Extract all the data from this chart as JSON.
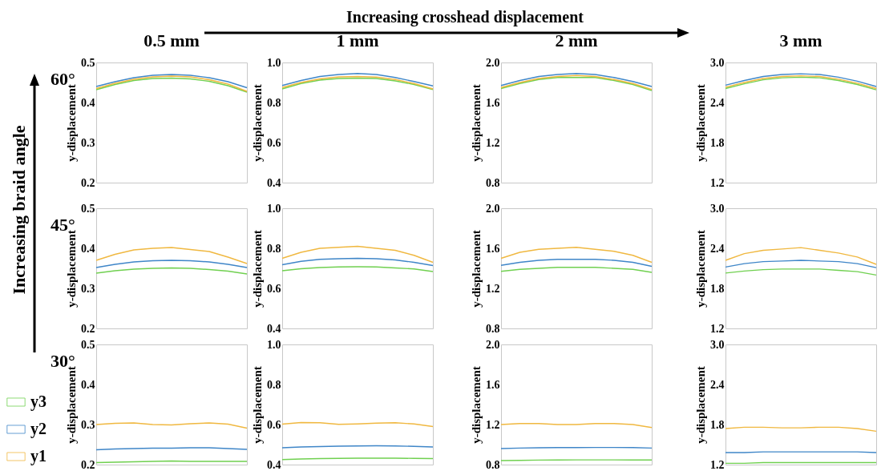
{
  "chart_data": [
    {
      "type": "line",
      "title": "0.5 mm",
      "ylabel": "y-displacement",
      "annotations": [
        "60°",
        "Increasing crosshead displacement",
        "Increasing braid angle"
      ],
      "categories": [
        null,
        null,
        null,
        null,
        null,
        null,
        null,
        null,
        null
      ],
      "ylim": [
        0.2,
        0.5
      ],
      "yticks": [
        0.2,
        0.3,
        0.4,
        0.5
      ],
      "series": [
        {
          "color": "#70d050",
          "values": [
            0.432,
            0.445,
            0.455,
            0.46,
            0.461,
            0.459,
            0.453,
            0.442,
            0.426
          ]
        },
        {
          "color": "#3f86c8",
          "values": [
            0.44,
            0.452,
            0.462,
            0.468,
            0.47,
            0.468,
            0.462,
            0.452,
            0.437
          ]
        },
        {
          "color": "#f0b840",
          "values": [
            0.435,
            0.448,
            0.458,
            0.464,
            0.466,
            0.464,
            0.457,
            0.446,
            0.428
          ]
        }
      ]
    },
    {
      "type": "line",
      "title": "1 mm",
      "ylabel": "y-displacement",
      "categories": [
        null,
        null,
        null,
        null,
        null,
        null,
        null,
        null,
        null
      ],
      "ylim": [
        0.4,
        1.0
      ],
      "yticks": [
        0.4,
        0.6,
        0.8,
        {
          "value": 1.0,
          "label": "1.0"
        }
      ],
      "series": [
        {
          "color": "#70d050",
          "values": [
            0.868,
            0.895,
            0.912,
            0.92,
            0.922,
            0.92,
            0.908,
            0.89,
            0.865
          ]
        },
        {
          "color": "#3f86c8",
          "values": [
            0.885,
            0.91,
            0.93,
            0.94,
            0.945,
            0.94,
            0.925,
            0.905,
            0.883
          ]
        },
        {
          "color": "#f0b840",
          "values": [
            0.875,
            0.9,
            0.918,
            0.928,
            0.93,
            0.927,
            0.915,
            0.895,
            0.868
          ]
        }
      ]
    },
    {
      "type": "line",
      "title": "2 mm",
      "ylabel": "y-displacement",
      "categories": [
        null,
        null,
        null,
        null,
        null,
        null,
        null,
        null,
        null
      ],
      "ylim": [
        0.8,
        2.0
      ],
      "yticks": [
        0.8,
        1.2,
        1.6,
        {
          "value": 2.0,
          "label": "2.0"
        }
      ],
      "series": [
        {
          "color": "#70d050",
          "values": [
            1.74,
            1.79,
            1.83,
            1.85,
            1.85,
            1.85,
            1.82,
            1.78,
            1.72
          ]
        },
        {
          "color": "#3f86c8",
          "values": [
            1.77,
            1.82,
            1.86,
            1.88,
            1.89,
            1.88,
            1.85,
            1.81,
            1.76
          ]
        },
        {
          "color": "#f0b840",
          "values": [
            1.75,
            1.8,
            1.84,
            1.86,
            1.87,
            1.86,
            1.83,
            1.79,
            1.73
          ]
        }
      ]
    },
    {
      "type": "line",
      "title": "3 mm",
      "ylabel": "y-displacement",
      "categories": [
        null,
        null,
        null,
        null,
        null,
        null,
        null,
        null,
        null
      ],
      "ylim": [
        1.2,
        3.0
      ],
      "yticks": [
        1.2,
        1.8,
        2.4,
        {
          "value": 3.0,
          "label": "3.0"
        }
      ],
      "series": [
        {
          "color": "#70d050",
          "values": [
            2.61,
            2.68,
            2.74,
            2.77,
            2.78,
            2.77,
            2.73,
            2.67,
            2.59
          ]
        },
        {
          "color": "#3f86c8",
          "values": [
            2.66,
            2.73,
            2.79,
            2.82,
            2.83,
            2.82,
            2.78,
            2.72,
            2.64
          ]
        },
        {
          "color": "#f0b840",
          "values": [
            2.63,
            2.7,
            2.76,
            2.79,
            2.8,
            2.79,
            2.75,
            2.69,
            2.61
          ]
        }
      ]
    },
    {
      "type": "line",
      "ylabel": "y-displacement",
      "annotations": [
        "45°"
      ],
      "categories": [
        null,
        null,
        null,
        null,
        null,
        null,
        null,
        null,
        null
      ],
      "ylim": [
        0.2,
        0.5
      ],
      "yticks": [
        0.2,
        0.3,
        0.4,
        0.5
      ],
      "series": [
        {
          "color": "#70d050",
          "values": [
            0.338,
            0.344,
            0.348,
            0.35,
            0.351,
            0.35,
            0.347,
            0.343,
            0.336
          ]
        },
        {
          "color": "#3f86c8",
          "values": [
            0.352,
            0.36,
            0.366,
            0.369,
            0.37,
            0.369,
            0.366,
            0.36,
            0.352
          ]
        },
        {
          "color": "#f0b840",
          "values": [
            0.37,
            0.385,
            0.396,
            0.4,
            0.402,
            0.397,
            0.392,
            0.378,
            0.362
          ]
        }
      ]
    },
    {
      "type": "line",
      "ylabel": "y-displacement",
      "categories": [
        null,
        null,
        null,
        null,
        null,
        null,
        null,
        null,
        null
      ],
      "ylim": [
        0.4,
        1.0
      ],
      "yticks": [
        0.4,
        0.6,
        0.8,
        {
          "value": 1.0,
          "label": "1.0"
        }
      ],
      "series": [
        {
          "color": "#70d050",
          "values": [
            0.688,
            0.698,
            0.704,
            0.707,
            0.708,
            0.707,
            0.702,
            0.697,
            0.684
          ]
        },
        {
          "color": "#3f86c8",
          "values": [
            0.718,
            0.735,
            0.745,
            0.748,
            0.75,
            0.748,
            0.742,
            0.73,
            0.714
          ]
        },
        {
          "color": "#f0b840",
          "values": [
            0.75,
            0.78,
            0.8,
            0.805,
            0.81,
            0.8,
            0.79,
            0.765,
            0.73
          ]
        }
      ]
    },
    {
      "type": "line",
      "ylabel": "y-displacement",
      "categories": [
        null,
        null,
        null,
        null,
        null,
        null,
        null,
        null,
        null
      ],
      "ylim": [
        0.8,
        2.0
      ],
      "yticks": [
        0.8,
        1.2,
        1.6,
        {
          "value": 2.0,
          "label": "2.0"
        }
      ],
      "series": [
        {
          "color": "#70d050",
          "values": [
            1.37,
            1.39,
            1.4,
            1.41,
            1.41,
            1.41,
            1.4,
            1.39,
            1.36
          ]
        },
        {
          "color": "#3f86c8",
          "values": [
            1.43,
            1.46,
            1.48,
            1.49,
            1.49,
            1.49,
            1.48,
            1.46,
            1.42
          ]
        },
        {
          "color": "#f0b840",
          "values": [
            1.5,
            1.56,
            1.59,
            1.6,
            1.61,
            1.59,
            1.57,
            1.53,
            1.46
          ]
        }
      ]
    },
    {
      "type": "line",
      "ylabel": "y-displacement",
      "categories": [
        null,
        null,
        null,
        null,
        null,
        null,
        null,
        null,
        null
      ],
      "ylim": [
        1.2,
        3.0
      ],
      "yticks": [
        1.2,
        1.8,
        2.4,
        {
          "value": 3.0,
          "label": "3.0"
        }
      ],
      "series": [
        {
          "color": "#70d050",
          "values": [
            2.03,
            2.06,
            2.08,
            2.09,
            2.09,
            2.09,
            2.07,
            2.05,
            2.0
          ]
        },
        {
          "color": "#3f86c8",
          "values": [
            2.12,
            2.17,
            2.2,
            2.21,
            2.22,
            2.21,
            2.2,
            2.17,
            2.11
          ]
        },
        {
          "color": "#f0b840",
          "values": [
            2.22,
            2.32,
            2.37,
            2.39,
            2.41,
            2.37,
            2.33,
            2.27,
            2.16
          ]
        }
      ]
    },
    {
      "type": "line",
      "ylabel": "y-displacement",
      "annotations": [
        "30°"
      ],
      "legend": "left",
      "categories": [
        null,
        null,
        null,
        null,
        null,
        null,
        null,
        null,
        null
      ],
      "ylim": [
        0.2,
        0.5
      ],
      "yticks": [
        0.2,
        0.3,
        0.4,
        0.5
      ],
      "series": [
        {
          "name": "y3",
          "color": "#70d050",
          "values": [
            0.205,
            0.206,
            0.207,
            0.208,
            0.209,
            0.208,
            0.208,
            0.208,
            0.208
          ]
        },
        {
          "name": "y2",
          "color": "#3f86c8",
          "values": [
            0.237,
            0.239,
            0.24,
            0.241,
            0.241,
            0.242,
            0.242,
            0.24,
            0.238
          ]
        },
        {
          "name": "y1",
          "color": "#f0b840",
          "values": [
            0.3,
            0.303,
            0.304,
            0.3,
            0.299,
            0.302,
            0.304,
            0.301,
            0.291
          ]
        }
      ]
    },
    {
      "type": "line",
      "ylabel": "y-displacement",
      "categories": [
        null,
        null,
        null,
        null,
        null,
        null,
        null,
        null,
        null
      ],
      "ylim": [
        0.4,
        1.0
      ],
      "yticks": [
        0.4,
        0.6,
        0.8,
        {
          "value": 1.0,
          "label": "1.0"
        }
      ],
      "series": [
        {
          "color": "#70d050",
          "values": [
            0.425,
            0.428,
            0.43,
            0.431,
            0.432,
            0.432,
            0.432,
            0.431,
            0.43
          ]
        },
        {
          "color": "#3f86c8",
          "values": [
            0.484,
            0.488,
            0.49,
            0.492,
            0.493,
            0.494,
            0.493,
            0.491,
            0.488
          ]
        },
        {
          "color": "#f0b840",
          "values": [
            0.602,
            0.61,
            0.609,
            0.601,
            0.603,
            0.607,
            0.609,
            0.603,
            0.59
          ]
        }
      ]
    },
    {
      "type": "line",
      "ylabel": "y-displacement",
      "categories": [
        null,
        null,
        null,
        null,
        null,
        null,
        null,
        null,
        null
      ],
      "ylim": [
        0.8,
        2.0
      ],
      "yticks": [
        0.8,
        1.2,
        1.6,
        {
          "value": 2.0,
          "label": "2.0"
        }
      ],
      "series": [
        {
          "color": "#70d050",
          "values": [
            0.84,
            0.842,
            0.845,
            0.846,
            0.847,
            0.847,
            0.847,
            0.846,
            0.846
          ]
        },
        {
          "color": "#3f86c8",
          "values": [
            0.96,
            0.965,
            0.968,
            0.97,
            0.97,
            0.971,
            0.971,
            0.97,
            0.965
          ]
        },
        {
          "color": "#f0b840",
          "values": [
            1.2,
            1.21,
            1.21,
            1.2,
            1.2,
            1.21,
            1.21,
            1.2,
            1.17
          ]
        }
      ]
    },
    {
      "type": "line",
      "ylabel": "y-displacement",
      "categories": [
        null,
        null,
        null,
        null,
        null,
        null,
        null,
        null,
        null
      ],
      "ylim": [
        1.2,
        3.0
      ],
      "yticks": [
        1.2,
        1.8,
        2.4,
        {
          "value": 3.0,
          "label": "3.0"
        }
      ],
      "series": [
        {
          "color": "#70d050",
          "values": [
            1.22,
            1.22,
            1.23,
            1.23,
            1.23,
            1.23,
            1.23,
            1.23,
            1.23
          ]
        },
        {
          "color": "#3f86c8",
          "values": [
            1.38,
            1.38,
            1.39,
            1.39,
            1.39,
            1.39,
            1.39,
            1.39,
            1.38
          ]
        },
        {
          "color": "#f0b840",
          "values": [
            1.74,
            1.76,
            1.76,
            1.75,
            1.75,
            1.76,
            1.76,
            1.74,
            1.7
          ]
        }
      ]
    }
  ]
}
